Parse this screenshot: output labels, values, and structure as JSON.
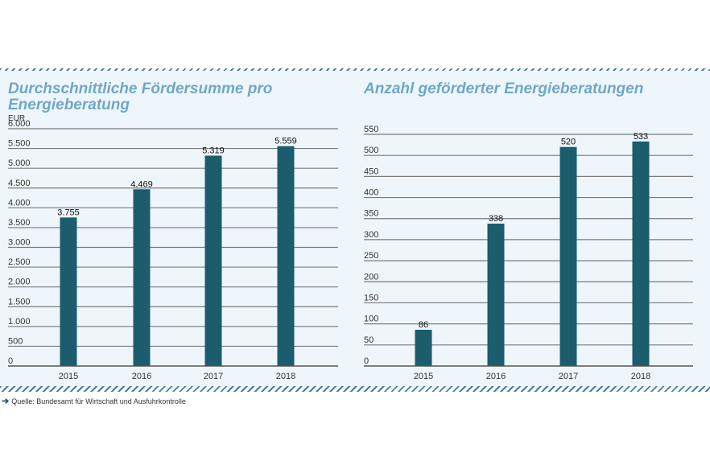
{
  "chart_data": [
    {
      "type": "bar",
      "title": "Durchschnittliche Fördersumme pro Energieberatung",
      "ylabel": "EUR",
      "categories": [
        "2015",
        "2016",
        "2017",
        "2018"
      ],
      "values": [
        3755,
        4469,
        5319,
        5559
      ],
      "value_labels": [
        "3.755",
        "4.469",
        "5.319",
        "5.559"
      ],
      "yticks": [
        0,
        500,
        1000,
        1500,
        2000,
        2500,
        3000,
        3500,
        4000,
        4500,
        5000,
        5500,
        6000
      ],
      "ytick_labels": [
        "0",
        "500",
        "1.000",
        "1.500",
        "2.000",
        "2.500",
        "3.000",
        "3.500",
        "4.000",
        "4.500",
        "5.000",
        "5.500",
        "6.000"
      ],
      "ylim": [
        0,
        6000
      ],
      "grid": true,
      "bar_color": "#1b5c6d"
    },
    {
      "type": "bar",
      "title": "Anzahl geförderter Energieberatungen",
      "ylabel": "",
      "categories": [
        "2015",
        "2016",
        "2017",
        "2018"
      ],
      "values": [
        86,
        338,
        520,
        533
      ],
      "value_labels": [
        "86",
        "338",
        "520",
        "533"
      ],
      "yticks": [
        0,
        50,
        100,
        150,
        200,
        250,
        300,
        350,
        400,
        450,
        500,
        550
      ],
      "ytick_labels": [
        "0",
        "50",
        "100",
        "150",
        "200",
        "250",
        "300",
        "350",
        "400",
        "450",
        "500",
        "550"
      ],
      "ylim": [
        0,
        550
      ],
      "grid": true,
      "bar_color": "#1b5c6d"
    }
  ],
  "source": "Quelle: Bundesamt für Wirtschaft und Ausfuhrkontrolle"
}
